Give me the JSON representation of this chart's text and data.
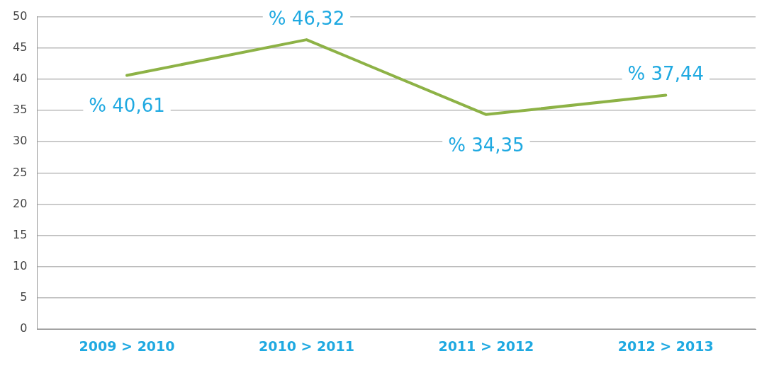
{
  "chart_data": {
    "type": "line",
    "categories": [
      "2009 > 2010",
      "2010 > 2011",
      "2011 > 2012",
      "2012 > 2013"
    ],
    "series": [
      {
        "color": "#8db246",
        "values": [
          40.61,
          46.32,
          34.35,
          37.44
        ],
        "value_labels": [
          "% 40,61",
          "% 46,32",
          "% 34,35",
          "% 37,44"
        ]
      }
    ],
    "ylim": [
      0,
      50
    ],
    "yticks": [
      0,
      5,
      10,
      15,
      20,
      25,
      30,
      35,
      40,
      45,
      50
    ],
    "grid": "y",
    "legend": false,
    "marker": "none",
    "line_style": "solid"
  }
}
